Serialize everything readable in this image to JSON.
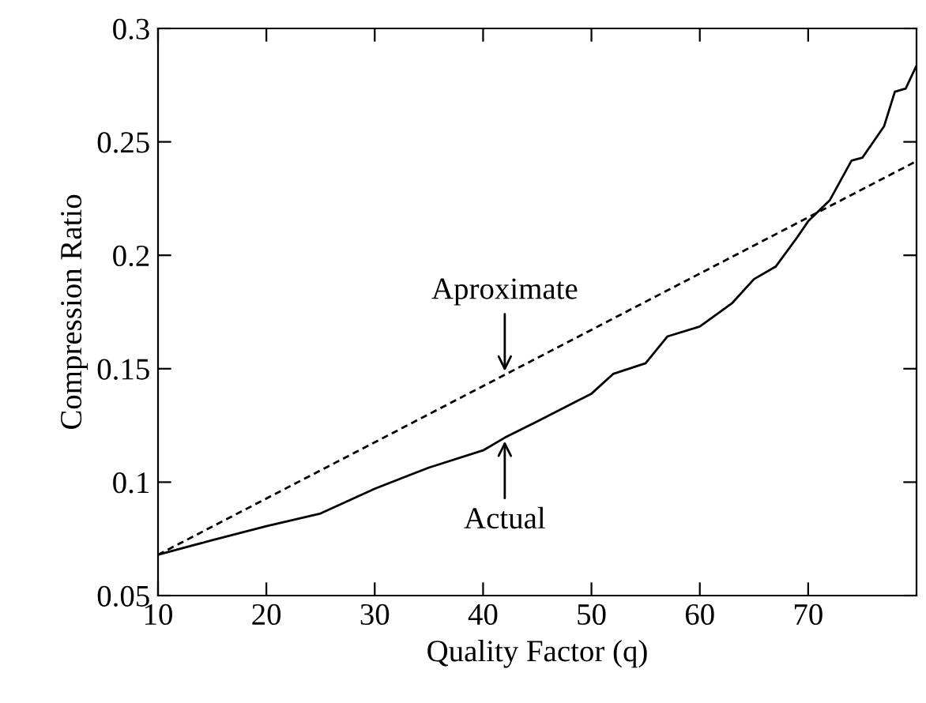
{
  "chart_data": {
    "type": "line",
    "xlabel": "Quality Factor (q)",
    "ylabel": "Compression Ratio",
    "xlim": [
      10,
      80
    ],
    "ylim": [
      0.05,
      0.3
    ],
    "xticks": [
      10,
      20,
      30,
      40,
      50,
      60,
      70
    ],
    "yticks": [
      0.05,
      0.1,
      0.15,
      0.2,
      0.25,
      0.3
    ],
    "grid": false,
    "legend": false,
    "marker": "none",
    "series": [
      {
        "color": "#000000",
        "line_style": "solid",
        "x": [
          10,
          15,
          20,
          25,
          30,
          35,
          40,
          42,
          45,
          50,
          52,
          55,
          57,
          60,
          63,
          65,
          67,
          69,
          70,
          72,
          74,
          75,
          77,
          78,
          79,
          80
        ],
        "values": [
          0.068,
          0.0744,
          0.0806,
          0.0862,
          0.0971,
          0.1064,
          0.114,
          0.1196,
          0.1268,
          0.139,
          0.1477,
          0.1524,
          0.1642,
          0.1686,
          0.179,
          0.1895,
          0.195,
          0.208,
          0.215,
          0.2243,
          0.2417,
          0.243,
          0.2568,
          0.2721,
          0.2735,
          0.2836
        ]
      },
      {
        "color": "#000000",
        "line_style": "dashed",
        "x": [
          10,
          80
        ],
        "values": [
          0.068,
          0.2415
        ]
      }
    ],
    "annotations": [
      {
        "text": "Aproximate",
        "x": 42,
        "y": 0.147
      },
      {
        "text": "Actual",
        "x": 42,
        "y": 0.12
      }
    ]
  }
}
